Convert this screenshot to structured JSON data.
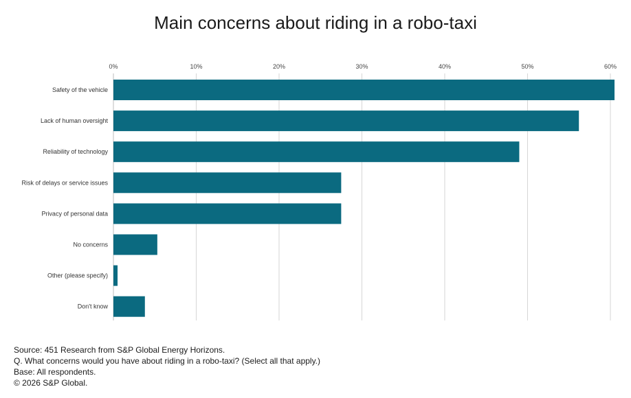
{
  "chart_data": {
    "type": "bar",
    "orientation": "horizontal",
    "title": "Main concerns about riding in a robo-taxi",
    "categories": [
      "Safety of the vehicle",
      "Lack of human oversight",
      "Reliability of technology",
      "Risk of delays or service issues",
      "Privacy of personal data",
      "No concerns",
      "Other (please specify)",
      "Don't know"
    ],
    "values": [
      60.5,
      56.2,
      49.0,
      27.5,
      27.5,
      5.3,
      0.5,
      3.8
    ],
    "xlim": [
      0,
      60
    ],
    "xticks": [
      0,
      10,
      20,
      30,
      40,
      50,
      60
    ],
    "tick_suffix": "%",
    "xlabel": "",
    "ylabel": "",
    "grid": true,
    "bar_color": "#0b6a80"
  },
  "footer": {
    "source": "Source: 451 Research from S&P Global Energy Horizons.",
    "question": "Q. What concerns would you have about riding in a robo-taxi? (Select all that apply.)",
    "base": "Base: All respondents.",
    "copyright": "© 2026 S&P Global."
  }
}
